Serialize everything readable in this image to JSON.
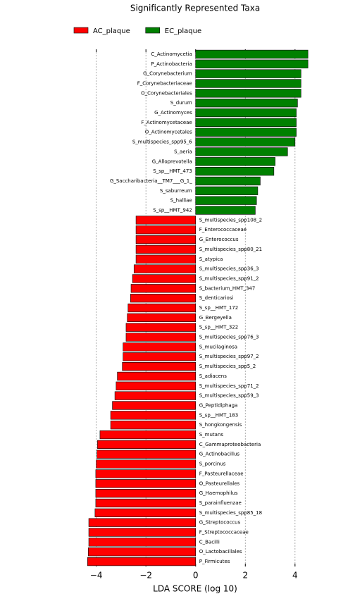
{
  "chart_data": {
    "type": "barh",
    "title": "Significantly Represented Taxa",
    "xlabel": "LDA SCORE (log 10)",
    "categories": [
      "C_Actinomycetia",
      "P_Actinobacteria",
      "G_Corynebacterium",
      "F_Corynebacteriaceae",
      "O_Corynebacteriales",
      "S_durum",
      "G_Actinomyces",
      "F_Actinomycetaceae",
      "O_Actinomycetales",
      "S_multispecies_spp95_6",
      "S_aeria",
      "G_Alloprevotella",
      "S_sp__HMT_473",
      "G_Saccharibacteria__TM7___G_1_",
      "S_saburreum",
      "S_halliae",
      "S_sp__HMT_942",
      "S_multispecies_spp108_2",
      "F_Enterococcaceae",
      "G_Enterococcus",
      "S_multispecies_spp80_21",
      "S_atypica",
      "S_multispecies_spp36_3",
      "S_multispecies_spp91_2",
      "S_bacterium_HMT_347",
      "S_denticariosi",
      "S_sp__HMT_172",
      "G_Bergeyella",
      "S_sp__HMT_322",
      "S_multispecies_spp76_3",
      "S_mucilaginosa",
      "S_multispecies_spp97_2",
      "S_multispecies_spp5_2",
      "S_adiacens",
      "S_multispecies_spp71_2",
      "S_multispecies_spp59_3",
      "G_Peptidiphaga",
      "S_sp__HMT_183",
      "S_hongkongensis",
      "S_mutans",
      "C_Gammaproteobacteria",
      "G_Actinobacillus",
      "S_porcinus",
      "F_Pasteurellaceae",
      "O_Pasteurellales",
      "G_Haemophilus",
      "S_parainfluenzae",
      "S_multispecies_spp85_18",
      "G_Streptococcus",
      "F_Streptococcaceae",
      "C_Bacilli",
      "O_Lactobacillales",
      "P_Firmicutes"
    ],
    "series": [
      {
        "name": "AC_plaque",
        "color": "#ff0000",
        "values": [
          null,
          null,
          null,
          null,
          null,
          null,
          null,
          null,
          null,
          null,
          null,
          null,
          null,
          null,
          null,
          null,
          null,
          -2.4,
          -2.4,
          -2.4,
          -2.4,
          -2.4,
          -2.48,
          -2.54,
          -2.6,
          -2.62,
          -2.72,
          -2.75,
          -2.8,
          -2.8,
          -2.92,
          -2.92,
          -2.95,
          -3.15,
          -3.2,
          -3.25,
          -3.35,
          -3.42,
          -3.42,
          -3.85,
          -3.95,
          -3.97,
          -4.0,
          -4.02,
          -4.02,
          -4.02,
          -4.02,
          -4.05,
          -4.3,
          -4.3,
          -4.3,
          -4.32,
          -4.35
        ]
      },
      {
        "name": "EC_plaque",
        "color": "#008000",
        "values": [
          4.52,
          4.52,
          4.24,
          4.24,
          4.24,
          4.1,
          4.05,
          4.05,
          4.05,
          4.0,
          3.7,
          3.2,
          3.15,
          2.6,
          2.5,
          2.45,
          2.4,
          null,
          null,
          null,
          null,
          null,
          null,
          null,
          null,
          null,
          null,
          null,
          null,
          null,
          null,
          null,
          null,
          null,
          null,
          null,
          null,
          null,
          null,
          null,
          null,
          null,
          null,
          null,
          null,
          null,
          null,
          null,
          null,
          null,
          null,
          null,
          null
        ]
      }
    ],
    "xlim": [
      -4.5,
      4.6
    ],
    "xticks": [
      {
        "value": -4,
        "label": "−4"
      },
      {
        "value": -2,
        "label": "−2"
      },
      0,
      2,
      4
    ],
    "grid": true,
    "legend": "top"
  }
}
